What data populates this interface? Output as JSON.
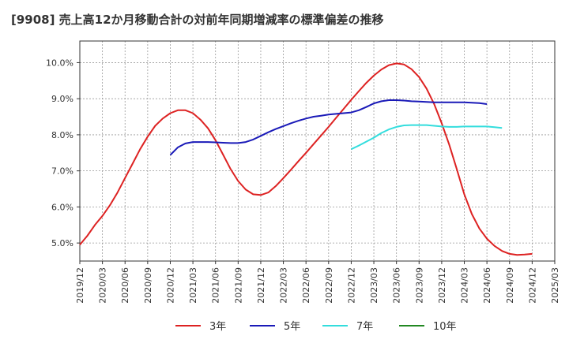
{
  "title": "[9908]  売上高12か月移動合計の対前年同期増減率の標準偏差の推移",
  "chart_data": {
    "type": "line",
    "ylim": [
      4.5,
      10.6
    ],
    "yticks": [
      5.0,
      6.0,
      7.0,
      8.0,
      9.0,
      10.0
    ],
    "ytick_labels": [
      "5.0%",
      "6.0%",
      "7.0%",
      "8.0%",
      "9.0%",
      "10.0%"
    ],
    "xticks": [
      "2019/12",
      "2020/03",
      "2020/06",
      "2020/09",
      "2020/12",
      "2021/03",
      "2021/06",
      "2021/09",
      "2021/12",
      "2022/03",
      "2022/06",
      "2022/09",
      "2022/12",
      "2023/03",
      "2023/06",
      "2023/09",
      "2023/12",
      "2024/03",
      "2024/06",
      "2024/09",
      "2024/12",
      "2025/03"
    ],
    "grid": true,
    "legend_position": "bottom",
    "series": [
      {
        "name": "3年",
        "color": "#dd2222",
        "start": "2019/12",
        "values": [
          4.95,
          5.2,
          5.5,
          5.75,
          6.05,
          6.4,
          6.8,
          7.2,
          7.6,
          7.95,
          8.25,
          8.45,
          8.6,
          8.68,
          8.68,
          8.6,
          8.42,
          8.18,
          7.85,
          7.45,
          7.05,
          6.72,
          6.48,
          6.35,
          6.33,
          6.4,
          6.58,
          6.8,
          7.03,
          7.27,
          7.5,
          7.74,
          7.98,
          8.22,
          8.47,
          8.72,
          8.97,
          9.21,
          9.44,
          9.64,
          9.81,
          9.93,
          9.98,
          9.95,
          9.82,
          9.6,
          9.28,
          8.85,
          8.32,
          7.73,
          7.05,
          6.35,
          5.8,
          5.4,
          5.12,
          4.92,
          4.78,
          4.7,
          4.67,
          4.68,
          4.7
        ]
      },
      {
        "name": "5年",
        "color": "#1a1ab8",
        "start": "2020/12",
        "values": [
          7.44,
          7.65,
          7.76,
          7.8,
          7.8,
          7.8,
          7.79,
          7.78,
          7.77,
          7.77,
          7.8,
          7.87,
          7.97,
          8.07,
          8.16,
          8.24,
          8.32,
          8.39,
          8.45,
          8.5,
          8.53,
          8.56,
          8.58,
          8.6,
          8.62,
          8.68,
          8.77,
          8.87,
          8.93,
          8.96,
          8.96,
          8.95,
          8.93,
          8.92,
          8.91,
          8.9,
          8.9,
          8.9,
          8.9,
          8.9,
          8.89,
          8.88,
          8.85
        ]
      },
      {
        "name": "7年",
        "color": "#33dddd",
        "start": "2022/12",
        "values": [
          7.6,
          7.7,
          7.81,
          7.92,
          8.05,
          8.15,
          8.22,
          8.26,
          8.27,
          8.27,
          8.27,
          8.25,
          8.23,
          8.22,
          8.22,
          8.23,
          8.23,
          8.23,
          8.23,
          8.21,
          8.19
        ]
      },
      {
        "name": "10年",
        "color": "#228822",
        "start": "2024/12",
        "values": []
      }
    ]
  }
}
